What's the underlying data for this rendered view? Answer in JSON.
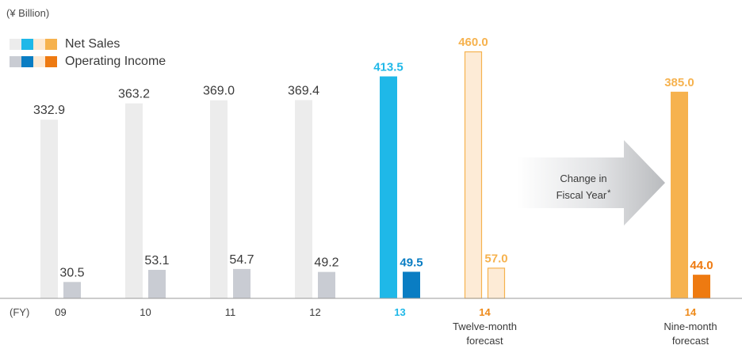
{
  "unit_label": "(¥ Billion)",
  "legend": {
    "net_sales": {
      "label": "Net Sales",
      "swatches": [
        "#ececec",
        "#1fb8e8",
        "#fde9d3",
        "#f6b24e"
      ]
    },
    "operating_income": {
      "label": "Operating Income",
      "swatches": [
        "#c9ccd3",
        "#0a7dc3",
        "#fde9d3",
        "#ee7a11"
      ]
    }
  },
  "chart_data": {
    "type": "bar",
    "title": "",
    "xlabel": "(FY)",
    "ylabel": "",
    "ylim": [
      0,
      460
    ],
    "categories": [
      {
        "id": "09",
        "label": "09",
        "sublabel": ""
      },
      {
        "id": "10",
        "label": "10",
        "sublabel": ""
      },
      {
        "id": "11",
        "label": "11",
        "sublabel": ""
      },
      {
        "id": "12",
        "label": "12",
        "sublabel": ""
      },
      {
        "id": "13",
        "label": "13",
        "sublabel": ""
      },
      {
        "id": "14-twelve",
        "label": "14",
        "sublabel": "Twelve-month forecast"
      },
      {
        "id": "14-nine",
        "label": "14",
        "sublabel": "Nine-month forecast"
      }
    ],
    "series": [
      {
        "name": "Net Sales",
        "values": [
          332.9,
          363.2,
          369.0,
          369.4,
          413.5,
          460.0,
          385.0
        ]
      },
      {
        "name": "Operating Income",
        "values": [
          30.5,
          53.1,
          54.7,
          49.2,
          49.5,
          57.0,
          44.0
        ]
      }
    ],
    "value_labels": {
      "Net Sales": [
        "332.9",
        "363.2",
        "369.0",
        "369.4",
        "413.5",
        "460.0",
        "385.0"
      ],
      "Operating Income": [
        "30.5",
        "53.1",
        "54.7",
        "49.2",
        "49.5",
        "57.0",
        "44.0"
      ]
    },
    "bar_styles": {
      "Net Sales": [
        {
          "fill": "#ececec",
          "stroke": "none",
          "label_color": "#3a3a3a",
          "bold": false
        },
        {
          "fill": "#ececec",
          "stroke": "none",
          "label_color": "#3a3a3a",
          "bold": false
        },
        {
          "fill": "#ececec",
          "stroke": "none",
          "label_color": "#3a3a3a",
          "bold": false
        },
        {
          "fill": "#ececec",
          "stroke": "none",
          "label_color": "#3a3a3a",
          "bold": false
        },
        {
          "fill": "#1fb8e8",
          "stroke": "none",
          "label_color": "#1fb8e8",
          "bold": true
        },
        {
          "fill": "#fdebd6",
          "stroke": "#f6b24e",
          "label_color": "#f6b24e",
          "bold": true
        },
        {
          "fill": "#f6b24e",
          "stroke": "none",
          "label_color": "#f6b24e",
          "bold": true
        }
      ],
      "Operating Income": [
        {
          "fill": "#c9ccd3",
          "stroke": "none",
          "label_color": "#3a3a3a",
          "bold": false
        },
        {
          "fill": "#c9ccd3",
          "stroke": "none",
          "label_color": "#3a3a3a",
          "bold": false
        },
        {
          "fill": "#c9ccd3",
          "stroke": "none",
          "label_color": "#3a3a3a",
          "bold": false
        },
        {
          "fill": "#c9ccd3",
          "stroke": "none",
          "label_color": "#3a3a3a",
          "bold": false
        },
        {
          "fill": "#0a7dc3",
          "stroke": "none",
          "label_color": "#0a7dc3",
          "bold": true
        },
        {
          "fill": "#fdebd6",
          "stroke": "#f6b24e",
          "label_color": "#f6b24e",
          "bold": true
        },
        {
          "fill": "#ee7a11",
          "stroke": "none",
          "label_color": "#ee7a11",
          "bold": true
        }
      ]
    },
    "category_label_colors": [
      "#3a3a3a",
      "#3a3a3a",
      "#3a3a3a",
      "#3a3a3a",
      "#1fb8e8",
      "#ee8a1a",
      "#ee8a1a"
    ],
    "annotation": {
      "text_line1": "Change in",
      "text_line2": "Fiscal Year",
      "asterisk": "*"
    },
    "grid": false,
    "legend_position": "top-left"
  }
}
